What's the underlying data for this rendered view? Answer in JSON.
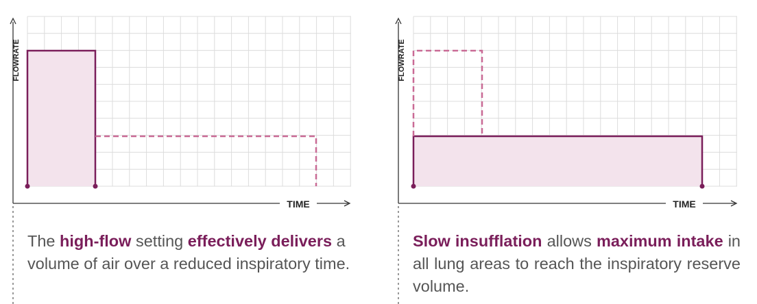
{
  "colors": {
    "accent": "#7a1e5a",
    "grid": "#dcdcdc",
    "fill": "#f3e3ec",
    "axis": "#333333",
    "text": "#555555"
  },
  "panels": [
    {
      "y_axis_label": "FLOWRATE",
      "x_axis_label": "TIME",
      "caption": [
        {
          "text": "The ",
          "bold": false
        },
        {
          "text": "high-flow",
          "bold": true
        },
        {
          "text": " setting ",
          "bold": false
        },
        {
          "text": "effectively delivers",
          "bold": true
        },
        {
          "text": " a volume of air over a reduced inspiratory time.",
          "bold": false
        }
      ]
    },
    {
      "y_axis_label": "FLOWRATE",
      "x_axis_label": "TIME",
      "caption": [
        {
          "text": "Slow insufflation",
          "bold": true
        },
        {
          "text": " allows ",
          "bold": false
        },
        {
          "text": "maximum intake",
          "bold": true
        },
        {
          "text": " in all lung areas to reach the inspiratory reserve volume.",
          "bold": false
        }
      ]
    }
  ]
}
